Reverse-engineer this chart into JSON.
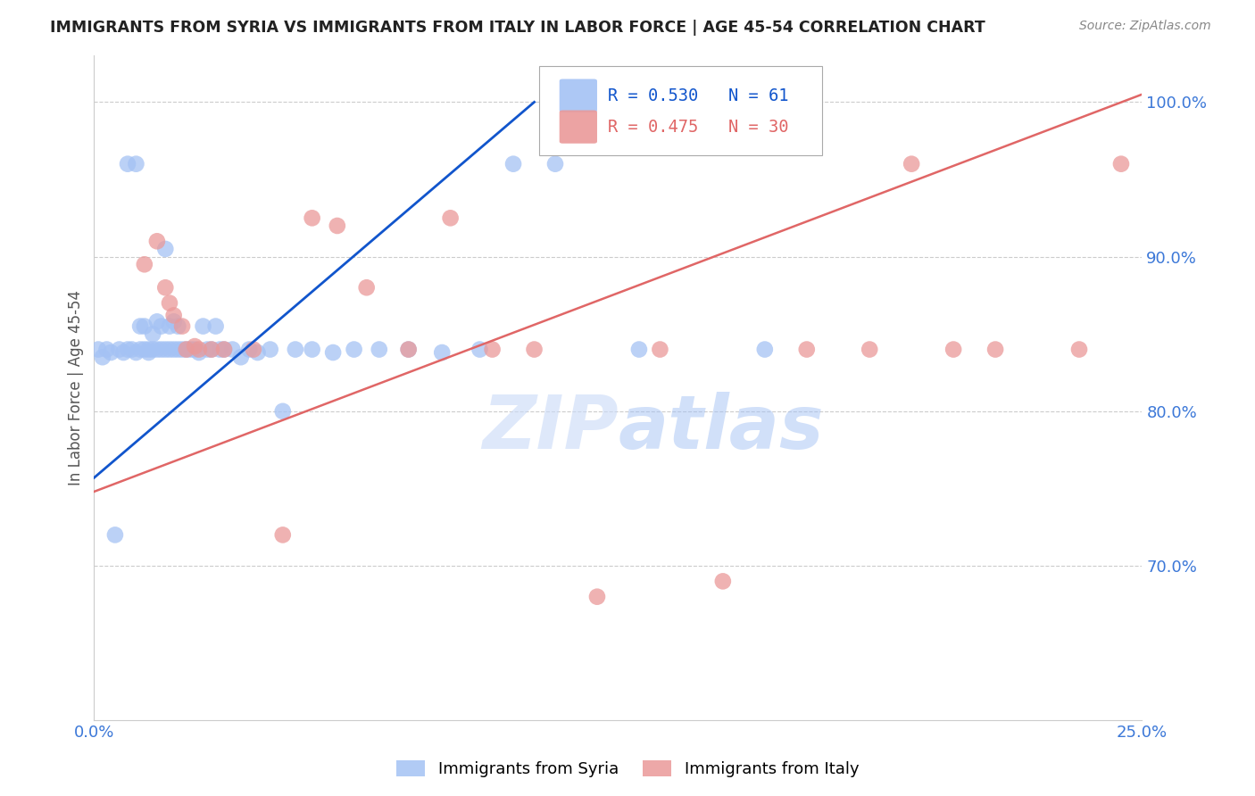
{
  "title": "IMMIGRANTS FROM SYRIA VS IMMIGRANTS FROM ITALY IN LABOR FORCE | AGE 45-54 CORRELATION CHART",
  "source": "Source: ZipAtlas.com",
  "ylabel": "In Labor Force | Age 45-54",
  "xlim": [
    0.0,
    0.25
  ],
  "ylim": [
    0.6,
    1.03
  ],
  "xtick_vals": [
    0.0,
    0.05,
    0.1,
    0.15,
    0.2,
    0.25
  ],
  "xtick_labels": [
    "0.0%",
    "",
    "",
    "",
    "",
    "25.0%"
  ],
  "ytick_right": [
    0.7,
    0.8,
    0.9,
    1.0
  ],
  "ytick_right_labels": [
    "70.0%",
    "80.0%",
    "90.0%",
    "100.0%"
  ],
  "syria_color": "#a4c2f4",
  "italy_color": "#ea9999",
  "syria_line_color": "#1155cc",
  "italy_line_color": "#e06666",
  "R_syria": 0.53,
  "N_syria": 61,
  "R_italy": 0.475,
  "N_italy": 30,
  "syria_line_x": [
    0.0,
    0.105
  ],
  "syria_line_y": [
    0.757,
    1.0
  ],
  "italy_line_x": [
    0.0,
    0.25
  ],
  "italy_line_y": [
    0.748,
    1.005
  ],
  "syria_x": [
    0.001,
    0.002,
    0.003,
    0.004,
    0.005,
    0.006,
    0.007,
    0.008,
    0.008,
    0.009,
    0.01,
    0.01,
    0.011,
    0.011,
    0.012,
    0.012,
    0.013,
    0.013,
    0.014,
    0.014,
    0.015,
    0.015,
    0.016,
    0.016,
    0.017,
    0.017,
    0.018,
    0.018,
    0.019,
    0.019,
    0.02,
    0.02,
    0.021,
    0.022,
    0.023,
    0.024,
    0.025,
    0.026,
    0.027,
    0.028,
    0.029,
    0.03,
    0.031,
    0.033,
    0.035,
    0.037,
    0.039,
    0.042,
    0.045,
    0.048,
    0.052,
    0.057,
    0.062,
    0.068,
    0.075,
    0.083,
    0.092,
    0.1,
    0.11,
    0.13,
    0.16
  ],
  "syria_y": [
    0.84,
    0.835,
    0.84,
    0.838,
    0.72,
    0.84,
    0.838,
    0.96,
    0.84,
    0.84,
    0.96,
    0.838,
    0.855,
    0.84,
    0.84,
    0.855,
    0.84,
    0.838,
    0.85,
    0.84,
    0.84,
    0.858,
    0.84,
    0.855,
    0.905,
    0.84,
    0.855,
    0.84,
    0.84,
    0.858,
    0.84,
    0.855,
    0.84,
    0.84,
    0.84,
    0.84,
    0.838,
    0.855,
    0.84,
    0.84,
    0.855,
    0.84,
    0.84,
    0.84,
    0.835,
    0.84,
    0.838,
    0.84,
    0.8,
    0.84,
    0.84,
    0.838,
    0.84,
    0.84,
    0.84,
    0.838,
    0.84,
    0.96,
    0.96,
    0.84,
    0.84
  ],
  "italy_x": [
    0.012,
    0.015,
    0.017,
    0.018,
    0.019,
    0.021,
    0.022,
    0.024,
    0.025,
    0.028,
    0.031,
    0.038,
    0.045,
    0.052,
    0.058,
    0.065,
    0.075,
    0.085,
    0.095,
    0.105,
    0.12,
    0.135,
    0.15,
    0.17,
    0.185,
    0.195,
    0.205,
    0.215,
    0.235,
    0.245
  ],
  "italy_y": [
    0.895,
    0.91,
    0.88,
    0.87,
    0.862,
    0.855,
    0.84,
    0.842,
    0.84,
    0.84,
    0.84,
    0.84,
    0.72,
    0.925,
    0.92,
    0.88,
    0.84,
    0.925,
    0.84,
    0.84,
    0.68,
    0.84,
    0.69,
    0.84,
    0.84,
    0.96,
    0.84,
    0.84,
    0.84,
    0.96
  ]
}
